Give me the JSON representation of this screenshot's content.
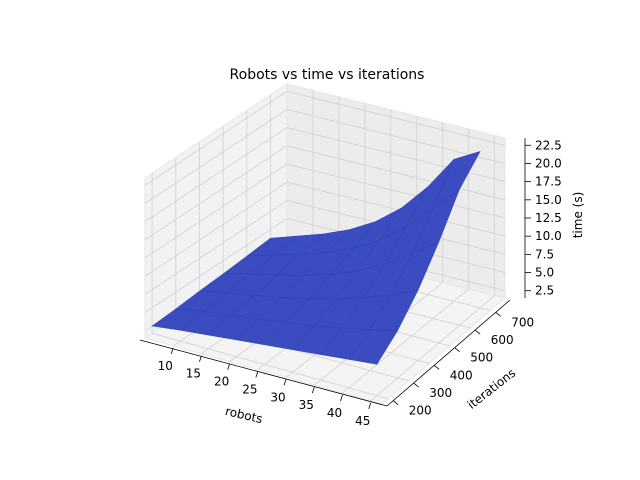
{
  "chart_data": {
    "type": "surface3d",
    "title": "Robots vs time vs iterations",
    "xlabel": "robots",
    "ylabel": "iterations",
    "zlabel": "time (s)",
    "xlim": [
      5,
      47
    ],
    "ylim": [
      170,
      770
    ],
    "zlim": [
      1.5,
      23.5
    ],
    "xticks": [
      10,
      15,
      20,
      25,
      30,
      35,
      40,
      45
    ],
    "yticks": [
      200,
      300,
      400,
      500,
      600,
      700
    ],
    "zticks": [
      "2.5",
      "5.0",
      "7.5",
      "10.0",
      "12.5",
      "15.0",
      "17.5",
      "20.0",
      "22.5"
    ],
    "surface_color": "#3a4cc0",
    "grid": true,
    "surface_points": {
      "robots": [
        5,
        10,
        15,
        20,
        25,
        30,
        35,
        40,
        45
      ],
      "iterations": [
        200,
        300,
        400,
        500,
        600,
        700
      ],
      "time": [
        [
          2.5,
          2.7,
          3.0,
          3.2,
          3.5,
          3.8
        ],
        [
          3.0,
          3.4,
          3.8,
          4.2,
          4.6,
          5.0
        ],
        [
          3.4,
          3.9,
          4.4,
          5.0,
          5.6,
          6.2
        ],
        [
          3.8,
          4.4,
          5.1,
          5.9,
          6.8,
          7.7
        ],
        [
          4.2,
          5.0,
          5.9,
          7.0,
          8.3,
          9.7
        ],
        [
          4.6,
          5.6,
          6.9,
          8.5,
          10.4,
          12.5
        ],
        [
          5.0,
          6.3,
          8.1,
          10.4,
          13.2,
          16.3
        ],
        [
          5.4,
          7.1,
          9.5,
          12.7,
          16.6,
          21.0
        ],
        [
          5.8,
          8.0,
          11.2,
          15.4,
          20.2,
          23.0
        ]
      ]
    }
  }
}
